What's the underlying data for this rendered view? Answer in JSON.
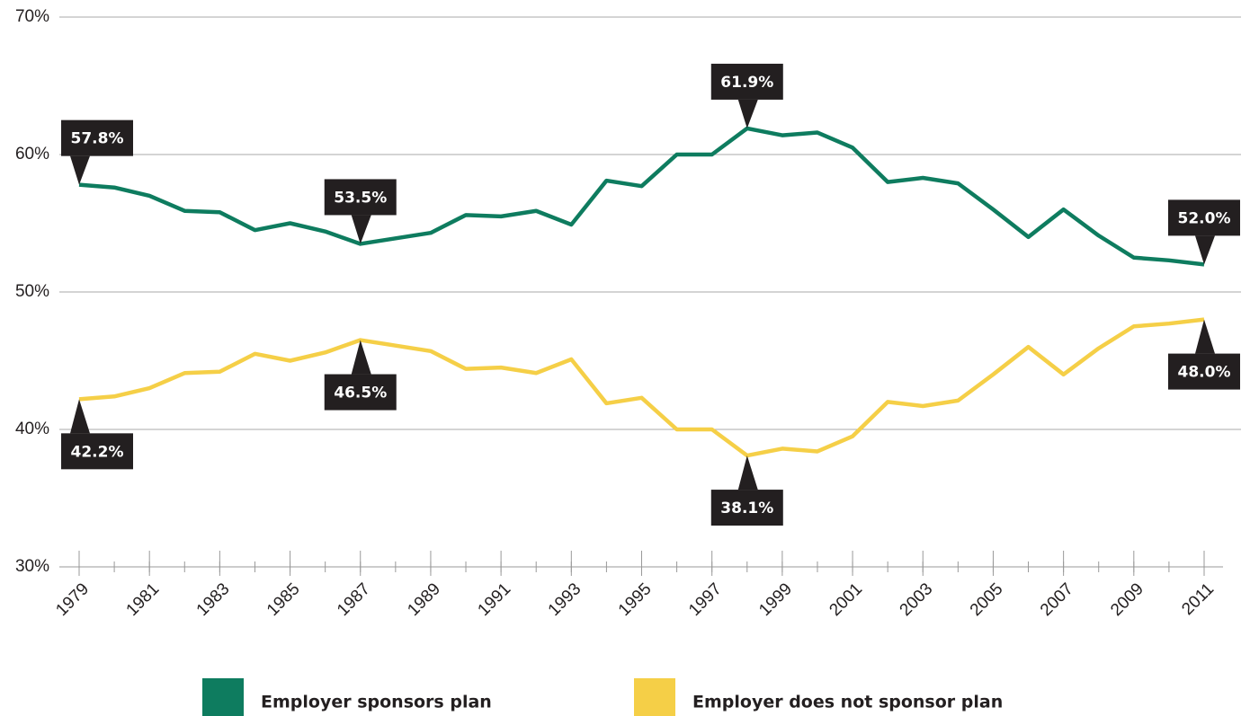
{
  "chart_data": {
    "type": "line",
    "x": [
      1979,
      1980,
      1981,
      1982,
      1983,
      1984,
      1985,
      1986,
      1987,
      1988,
      1989,
      1990,
      1991,
      1992,
      1993,
      1994,
      1995,
      1996,
      1997,
      1998,
      1999,
      2000,
      2001,
      2002,
      2003,
      2004,
      2005,
      2006,
      2007,
      2008,
      2009,
      2010,
      2011
    ],
    "series": [
      {
        "name": "Employer sponsors plan",
        "color": "#0e7c5f",
        "values": [
          57.8,
          57.6,
          57.0,
          55.9,
          55.8,
          54.5,
          55.0,
          54.4,
          53.5,
          53.9,
          54.3,
          55.6,
          55.5,
          55.9,
          54.9,
          58.1,
          57.7,
          60.0,
          60.0,
          61.9,
          61.4,
          61.6,
          60.5,
          58.0,
          58.3,
          57.9,
          56.0,
          54.0,
          56.0,
          54.1,
          52.5,
          52.3,
          52.0
        ],
        "value_labels": [
          "57.8%",
          null,
          null,
          null,
          null,
          null,
          null,
          null,
          "53.5%",
          null,
          null,
          null,
          null,
          null,
          null,
          null,
          null,
          null,
          null,
          "61.9%",
          null,
          null,
          null,
          null,
          null,
          null,
          null,
          null,
          null,
          null,
          null,
          null,
          "52.0%"
        ]
      },
      {
        "name": "Employer does not sponsor plan",
        "color": "#f5cf47",
        "values": [
          42.2,
          42.4,
          43.0,
          44.1,
          44.2,
          45.5,
          45.0,
          45.6,
          46.5,
          46.1,
          45.7,
          44.4,
          44.5,
          44.1,
          45.1,
          41.9,
          42.3,
          40.0,
          40.0,
          38.1,
          38.6,
          38.4,
          39.5,
          42.0,
          41.7,
          42.1,
          44.0,
          46.0,
          44.0,
          45.9,
          47.5,
          47.7,
          48.0
        ],
        "value_labels": [
          "42.2%",
          null,
          null,
          null,
          null,
          null,
          null,
          null,
          "46.5%",
          null,
          null,
          null,
          null,
          null,
          null,
          null,
          null,
          null,
          null,
          "38.1%",
          null,
          null,
          null,
          null,
          null,
          null,
          null,
          null,
          null,
          null,
          null,
          null,
          "48.0%"
        ]
      }
    ],
    "xlim": [
      1979,
      2011
    ],
    "xticks": [
      1979,
      1981,
      1983,
      1985,
      1987,
      1989,
      1991,
      1993,
      1995,
      1997,
      1999,
      2001,
      2003,
      2005,
      2007,
      2009,
      2011
    ],
    "ylim": [
      30,
      70
    ],
    "yticks": [
      {
        "value": 30,
        "label": "30%"
      },
      {
        "value": 40,
        "label": "40%"
      },
      {
        "value": 50,
        "label": "50%"
      },
      {
        "value": 60,
        "label": "60%"
      },
      {
        "value": 70,
        "label": "70%"
      }
    ],
    "grid": true
  }
}
